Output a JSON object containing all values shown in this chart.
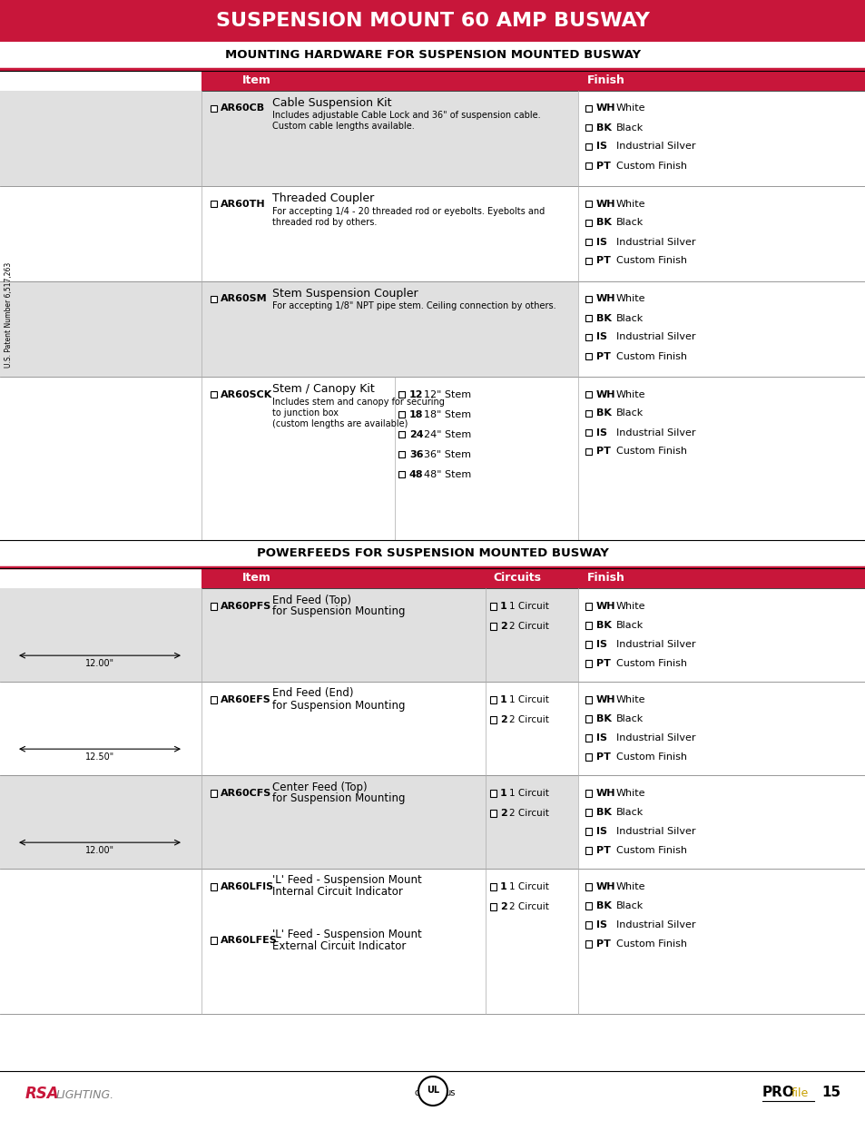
{
  "title": "SUSPENSION MOUNT 60 AMP BUSWAY",
  "title_bg": "#c8163a",
  "title_color": "#ffffff",
  "section1_title": "MOUNTING HARDWARE FOR SUSPENSION MOUNTED BUSWAY",
  "section2_title": "POWERFEEDS FOR SUSPENSION MOUNTED BUSWAY",
  "header_bg": "#c8163a",
  "header_text_color": "#ffffff",
  "row_bg_light": "#e0e0e0",
  "row_bg_white": "#ffffff",
  "bg_color": "#ffffff",
  "section1_rows": [
    {
      "code": "AR60CB",
      "name": "Cable Suspension Kit",
      "desc": "Includes adjustable Cable Lock and 36\" of suspension cable.\nCustom cable lengths available.",
      "sizes": [],
      "finishes": [
        [
          "WH",
          "White"
        ],
        [
          "BK",
          "Black"
        ],
        [
          "IS",
          "Industrial Silver"
        ],
        [
          "PT",
          "Custom Finish"
        ]
      ]
    },
    {
      "code": "AR60TH",
      "name": "Threaded Coupler",
      "desc": "For accepting 1/4 - 20 threaded rod or eyebolts. Eyebolts and\nthreaded rod by others.",
      "sizes": [],
      "finishes": [
        [
          "WH",
          "White"
        ],
        [
          "BK",
          "Black"
        ],
        [
          "IS",
          "Industrial Silver"
        ],
        [
          "PT",
          "Custom Finish"
        ]
      ]
    },
    {
      "code": "AR60SM",
      "name": "Stem Suspension Coupler",
      "desc": "For accepting 1/8\" NPT pipe stem. Ceiling connection by others.",
      "sizes": [],
      "finishes": [
        [
          "WH",
          "White"
        ],
        [
          "BK",
          "Black"
        ],
        [
          "IS",
          "Industrial Silver"
        ],
        [
          "PT",
          "Custom Finish"
        ]
      ]
    },
    {
      "code": "AR60SCK",
      "name": "Stem / Canopy Kit",
      "desc": "Includes stem and canopy for securing\nto junction box\n(custom lengths are available)",
      "sizes": [
        [
          "12",
          "12\" Stem"
        ],
        [
          "18",
          "18\" Stem"
        ],
        [
          "24",
          "24\" Stem"
        ],
        [
          "36",
          "36\" Stem"
        ],
        [
          "48",
          "48\" Stem"
        ]
      ],
      "finishes": [
        [
          "WH",
          "White"
        ],
        [
          "BK",
          "Black"
        ],
        [
          "IS",
          "Industrial Silver"
        ],
        [
          "PT",
          "Custom Finish"
        ]
      ]
    }
  ],
  "section2_rows": [
    {
      "code": "AR60PFS",
      "name": "End Feed (Top)",
      "name2": "for Suspension Mounting",
      "code2": null,
      "name3": null,
      "name4": null,
      "dim": "12.00\"",
      "circuits": [
        [
          "1",
          "1 Circuit"
        ],
        [
          "2",
          "2 Circuit"
        ]
      ],
      "finishes": [
        [
          "WH",
          "White"
        ],
        [
          "BK",
          "Black"
        ],
        [
          "IS",
          "Industrial Silver"
        ],
        [
          "PT",
          "Custom Finish"
        ]
      ]
    },
    {
      "code": "AR60EFS",
      "name": "End Feed (End)",
      "name2": "for Suspension Mounting",
      "code2": null,
      "name3": null,
      "name4": null,
      "dim": "12.50\"",
      "circuits": [
        [
          "1",
          "1 Circuit"
        ],
        [
          "2",
          "2 Circuit"
        ]
      ],
      "finishes": [
        [
          "WH",
          "White"
        ],
        [
          "BK",
          "Black"
        ],
        [
          "IS",
          "Industrial Silver"
        ],
        [
          "PT",
          "Custom Finish"
        ]
      ]
    },
    {
      "code": "AR60CFS",
      "name": "Center Feed (Top)",
      "name2": "for Suspension Mounting",
      "code2": null,
      "name3": null,
      "name4": null,
      "dim": "12.00\"",
      "circuits": [
        [
          "1",
          "1 Circuit"
        ],
        [
          "2",
          "2 Circuit"
        ]
      ],
      "finishes": [
        [
          "WH",
          "White"
        ],
        [
          "BK",
          "Black"
        ],
        [
          "IS",
          "Industrial Silver"
        ],
        [
          "PT",
          "Custom Finish"
        ]
      ]
    },
    {
      "code": "AR60LFIS",
      "name": "'L' Feed - Suspension Mount",
      "name2": "Internal Circuit Indicator",
      "code2": "AR60LFES",
      "name3": "'L' Feed - Suspension Mount",
      "name4": "External Circuit Indicator",
      "dim": null,
      "circuits": [
        [
          "1",
          "1 Circuit"
        ],
        [
          "2",
          "2 Circuit"
        ]
      ],
      "finishes": [
        [
          "WH",
          "White"
        ],
        [
          "BK",
          "Black"
        ],
        [
          "IS",
          "Industrial Silver"
        ],
        [
          "PT",
          "Custom Finish"
        ]
      ]
    }
  ]
}
